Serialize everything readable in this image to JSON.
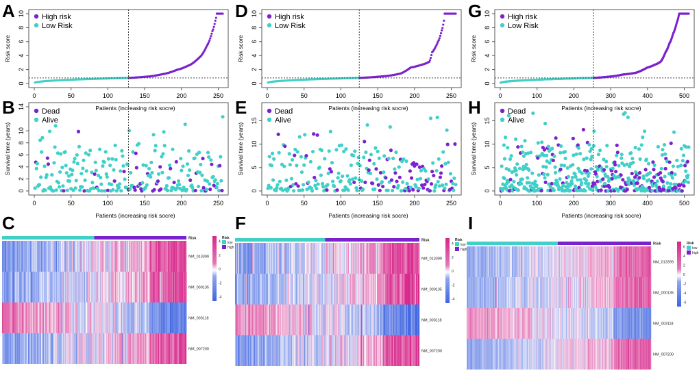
{
  "figure": {
    "colors": {
      "high": "#7B22CF",
      "low": "#40D0C8",
      "heat_high": "#D7268A",
      "heat_mid": "#FFFFFF",
      "heat_low": "#3F64E0",
      "axis": "#555555",
      "cutoff_line": "#444444"
    }
  },
  "chart_data": [
    {
      "panel": "A",
      "type": "scatter",
      "subtype": "risk-score-curve",
      "xlabel": "Patients (increasing risk socre)",
      "ylabel": "Risk score",
      "xlim": [
        0,
        256
      ],
      "ylim": [
        0,
        10
      ],
      "xticks": [
        "0",
        "50",
        "100",
        "150",
        "200",
        "250"
      ],
      "yticks": [
        "0",
        "2",
        "4",
        "6",
        "8",
        "10"
      ],
      "cutoff_x": 128,
      "cutoff_y": 0.8,
      "n_patients": 256,
      "n_low": 128,
      "curve": {
        "low_start": 0.05,
        "low_end": 0.8,
        "knots": [
          [
            128,
            0.8
          ],
          [
            155,
            1.0
          ],
          [
            175,
            1.35
          ],
          [
            195,
            2.0
          ],
          [
            210,
            2.6
          ],
          [
            225,
            3.8
          ],
          [
            235,
            5.5
          ],
          [
            242,
            7.5
          ],
          [
            246,
            9.0
          ],
          [
            248,
            10
          ],
          [
            256,
            10
          ]
        ]
      },
      "legend": [
        {
          "label": "High risk",
          "color": "#7B22CF"
        },
        {
          "label": "Low Risk",
          "color": "#40D0C8"
        }
      ],
      "legend_position": "top-left"
    },
    {
      "panel": "B",
      "type": "scatter",
      "subtype": "survival-status",
      "xlabel": "Patients (increasing risk socre)",
      "ylabel": "Survival time (years)",
      "xlim": [
        0,
        256
      ],
      "ylim": [
        0,
        14
      ],
      "xticks": [
        "0",
        "50",
        "100",
        "150",
        "200",
        "250"
      ],
      "yticks": [
        "0",
        "2",
        "4",
        "6",
        "8",
        "10",
        "14"
      ],
      "ytick_values": [
        0,
        2,
        4,
        6,
        8,
        10,
        14
      ],
      "cutoff_x": 128,
      "n_patients": 256,
      "dead_fraction_low": 0.08,
      "dead_fraction_high": 0.35,
      "seed": 11,
      "legend": [
        {
          "label": "Dead",
          "color": "#7B22CF"
        },
        {
          "label": "Alive",
          "color": "#40D0C8"
        }
      ],
      "legend_position": "top-left"
    },
    {
      "panel": "C",
      "type": "heatmap",
      "genes": [
        "NM_013399",
        "NM_000135",
        "NM_003118",
        "NM_007200"
      ],
      "annotation_label": "Risk",
      "annotation_groups": [
        {
          "label": "low",
          "color": "#40D0C8"
        },
        {
          "label": "high",
          "color": "#7B22CF"
        }
      ],
      "n_patients": 256,
      "n_low": 128,
      "gene_trend": [
        1,
        1,
        -1,
        1
      ],
      "scale_ticks": [
        "4",
        "2",
        "0",
        "-2",
        "-4"
      ],
      "scale_range": [
        -5,
        5
      ],
      "seed": 21
    },
    {
      "panel": "D",
      "type": "scatter",
      "subtype": "risk-score-curve",
      "xlabel": "Patients (increasing risk socre)",
      "ylabel": "Risk score",
      "xlim": [
        0,
        256
      ],
      "ylim": [
        0,
        10
      ],
      "xticks": [
        "0",
        "50",
        "100",
        "150",
        "200",
        "250"
      ],
      "yticks": [
        "0",
        "2",
        "4",
        "6",
        "8",
        "10"
      ],
      "cutoff_x": 125,
      "cutoff_y": 0.8,
      "n_patients": 256,
      "n_low": 125,
      "curve": {
        "low_start": 0.05,
        "low_end": 0.8,
        "knots": [
          [
            125,
            0.8
          ],
          [
            160,
            1.05
          ],
          [
            180,
            1.4
          ],
          [
            195,
            2.3
          ],
          [
            210,
            2.7
          ],
          [
            220,
            3.1
          ],
          [
            224,
            4.5
          ],
          [
            232,
            6.0
          ],
          [
            237,
            7.6
          ],
          [
            240,
            9.0
          ],
          [
            241,
            10
          ],
          [
            256,
            10
          ]
        ]
      },
      "legend": [
        {
          "label": "High risk",
          "color": "#7B22CF"
        },
        {
          "label": "Low Risk",
          "color": "#40D0C8"
        }
      ],
      "legend_position": "top-left"
    },
    {
      "panel": "E",
      "type": "scatter",
      "subtype": "survival-status",
      "xlabel": "Patients (increasing risk socre)",
      "ylabel": "Survival time (years)",
      "xlim": [
        0,
        256
      ],
      "ylim": [
        0,
        18
      ],
      "xticks": [
        "0",
        "50",
        "100",
        "150",
        "200",
        "250"
      ],
      "yticks": [
        "0",
        "5",
        "10",
        "15"
      ],
      "ytick_values": [
        0,
        5,
        10,
        15
      ],
      "cutoff_x": 125,
      "n_patients": 256,
      "dead_fraction_low": 0.1,
      "dead_fraction_high": 0.38,
      "seed": 33,
      "legend": [
        {
          "label": "Dead",
          "color": "#7B22CF"
        },
        {
          "label": "Alive",
          "color": "#40D0C8"
        }
      ],
      "legend_position": "top-left"
    },
    {
      "panel": "F",
      "type": "heatmap",
      "genes": [
        "NM_013399",
        "NM_000135",
        "NM_003118",
        "NM_007200"
      ],
      "annotation_label": "Risk",
      "annotation_groups": [
        {
          "label": "low",
          "color": "#40D0C8"
        },
        {
          "label": "high",
          "color": "#7B22CF"
        }
      ],
      "n_patients": 256,
      "n_low": 125,
      "gene_trend": [
        1,
        1,
        -1,
        1
      ],
      "scale_ticks": [
        "4",
        "2",
        "0",
        "-2",
        "-4"
      ],
      "scale_range": [
        -5,
        5
      ],
      "seed": 44
    },
    {
      "panel": "G",
      "type": "scatter",
      "subtype": "risk-score-curve",
      "xlabel": "Patients (increasing risk socre)",
      "ylabel": "Risk score",
      "xlim": [
        0,
        512
      ],
      "ylim": [
        0,
        10
      ],
      "xticks": [
        "0",
        "100",
        "200",
        "300",
        "400",
        "500"
      ],
      "yticks": [
        "0",
        "2",
        "4",
        "6",
        "8",
        "10"
      ],
      "cutoff_x": 253,
      "cutoff_y": 0.8,
      "n_patients": 512,
      "n_low": 253,
      "curve": {
        "low_start": 0.05,
        "low_end": 0.8,
        "knots": [
          [
            253,
            0.8
          ],
          [
            300,
            1.0
          ],
          [
            335,
            1.3
          ],
          [
            365,
            1.5
          ],
          [
            400,
            2.3
          ],
          [
            420,
            2.7
          ],
          [
            435,
            3.1
          ],
          [
            450,
            4.6
          ],
          [
            460,
            5.8
          ],
          [
            470,
            7.2
          ],
          [
            480,
            8.8
          ],
          [
            486,
            10
          ],
          [
            512,
            10
          ]
        ]
      },
      "legend": [
        {
          "label": "High risk",
          "color": "#7B22CF"
        },
        {
          "label": "Low Risk",
          "color": "#40D0C8"
        }
      ],
      "legend_position": "top-left"
    },
    {
      "panel": "H",
      "type": "scatter",
      "subtype": "survival-status",
      "xlabel": "Patients (increasing risk socre)",
      "ylabel": "Survival time (years)",
      "xlim": [
        0,
        512
      ],
      "ylim": [
        0,
        18
      ],
      "xticks": [
        "0",
        "100",
        "200",
        "300",
        "400",
        "500"
      ],
      "yticks": [
        "0",
        "5",
        "10",
        "15"
      ],
      "ytick_values": [
        0,
        5,
        10,
        15
      ],
      "cutoff_x": 253,
      "n_patients": 512,
      "dead_fraction_low": 0.1,
      "dead_fraction_high": 0.38,
      "seed": 55,
      "legend": [
        {
          "label": "Dead",
          "color": "#7B22CF"
        },
        {
          "label": "Alive",
          "color": "#40D0C8"
        }
      ],
      "legend_position": "top-left"
    },
    {
      "panel": "I",
      "type": "heatmap",
      "genes": [
        "NM_013399",
        "NM_000135",
        "NM_003118",
        "NM_007200"
      ],
      "annotation_label": "Risk",
      "annotation_groups": [
        {
          "label": "low",
          "color": "#40D0C8"
        },
        {
          "label": "high",
          "color": "#7B22CF"
        }
      ],
      "n_patients": 512,
      "n_low": 253,
      "gene_trend": [
        1,
        1,
        -1,
        1
      ],
      "scale_ticks": [
        "6",
        "4",
        "2",
        "0",
        "-2",
        "-4",
        "-6"
      ],
      "scale_range": [
        -6,
        6
      ],
      "seed": 66
    }
  ]
}
